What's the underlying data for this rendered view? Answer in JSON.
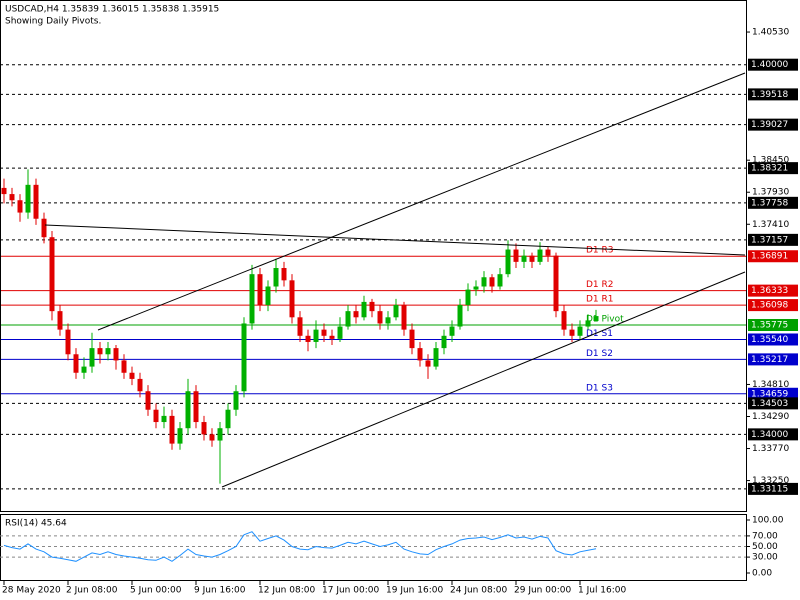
{
  "chart_data": {
    "type": "candlestick",
    "title": "USDCAD,H4  1.35839 1.36015 1.35838 1.35915",
    "subtitle": "Showing Daily Pivots.",
    "up_color": "#00b000",
    "down_color": "#e00000",
    "ylim": [
      1.3274,
      1.4105
    ],
    "xlim": [
      -0.5,
      92.75
    ],
    "xticks": [
      {
        "value": 0,
        "label": "28 May 2020"
      },
      {
        "value": 8,
        "label": "2 Jun 08:00"
      },
      {
        "value": 16,
        "label": "5 Jun 00:00"
      },
      {
        "value": 24,
        "label": "9 Jun 16:00"
      },
      {
        "value": 32,
        "label": "12 Jun 08:00"
      },
      {
        "value": 40,
        "label": "17 Jun 00:00"
      },
      {
        "value": 48,
        "label": "19 Jun 16:00"
      },
      {
        "value": 56,
        "label": "24 Jun 08:00"
      },
      {
        "value": 64,
        "label": "29 Jun 00:00"
      },
      {
        "value": 72,
        "label": "1 Jul 16:00"
      }
    ],
    "yticks": [
      {
        "value": 1.4053,
        "label": "1.40530"
      },
      {
        "value": 1.3845,
        "label": "1.38450"
      },
      {
        "value": 1.3793,
        "label": "1.37930"
      },
      {
        "value": 1.3741,
        "label": "1.37410"
      },
      {
        "value": 1.3481,
        "label": "1.34810"
      },
      {
        "value": 1.3429,
        "label": "1.34290"
      },
      {
        "value": 1.3377,
        "label": "1.33770"
      },
      {
        "value": 1.3325,
        "label": "1.33250"
      }
    ],
    "levels": [
      {
        "value": 1.4,
        "label": "1.40000",
        "color": "#000000",
        "style": "dotted"
      },
      {
        "value": 1.39518,
        "label": "1.39518",
        "color": "#000000",
        "style": "dotted"
      },
      {
        "value": 1.39027,
        "label": "1.39027",
        "color": "#000000",
        "style": "dotted"
      },
      {
        "value": 1.38321,
        "label": "1.38321",
        "color": "#000000",
        "style": "dotted"
      },
      {
        "value": 1.37758,
        "label": "1.37758",
        "color": "#000000",
        "style": "dotted"
      },
      {
        "value": 1.37157,
        "label": "1.37157",
        "color": "#000000",
        "style": "dotted"
      },
      {
        "value": 1.36891,
        "label": "1.36891",
        "color": "#e00000",
        "style": "solid",
        "name": "D1 R3"
      },
      {
        "value": 1.36333,
        "label": "1.36333",
        "color": "#e00000",
        "style": "solid",
        "name": "D1 R2"
      },
      {
        "value": 1.36098,
        "label": "1.36098",
        "color": "#e00000",
        "style": "solid",
        "name": "D1 R1"
      },
      {
        "value": 1.35775,
        "label": "1.35775",
        "color": "#00a000",
        "style": "solid",
        "name": "D1 Pivot"
      },
      {
        "value": 1.3554,
        "label": "1.35540",
        "color": "#0000cc",
        "style": "solid",
        "name": "D1 S1"
      },
      {
        "value": 1.35217,
        "label": "1.35217",
        "color": "#0000cc",
        "style": "solid",
        "name": "D1 S2"
      },
      {
        "value": 1.34659,
        "label": "1.34659",
        "color": "#0000cc",
        "style": "solid",
        "name": "D1 S3"
      },
      {
        "value": 1.34503,
        "label": "1.34503",
        "color": "#000000",
        "style": "dotted"
      },
      {
        "value": 1.34,
        "label": "1.34000",
        "color": "#000000",
        "style": "dotted"
      },
      {
        "value": 1.33115,
        "label": "1.33115",
        "color": "#000000",
        "style": "dotted"
      }
    ],
    "candles": [
      [
        1.38,
        1.3815,
        1.3775,
        1.379
      ],
      [
        1.379,
        1.38,
        1.377,
        1.378
      ],
      [
        1.378,
        1.379,
        1.3745,
        1.376
      ],
      [
        1.376,
        1.383,
        1.375,
        1.3805
      ],
      [
        1.3805,
        1.3815,
        1.374,
        1.375
      ],
      [
        1.375,
        1.376,
        1.371,
        1.372
      ],
      [
        1.372,
        1.373,
        1.3585,
        1.36
      ],
      [
        1.36,
        1.361,
        1.356,
        1.357
      ],
      [
        1.357,
        1.358,
        1.352,
        1.353
      ],
      [
        1.353,
        1.354,
        1.349,
        1.35
      ],
      [
        1.35,
        1.3525,
        1.349,
        1.351
      ],
      [
        1.351,
        1.3565,
        1.35,
        1.354
      ],
      [
        1.354,
        1.355,
        1.3515,
        1.353
      ],
      [
        1.353,
        1.355,
        1.352,
        1.354
      ],
      [
        1.354,
        1.3545,
        1.3505,
        1.352
      ],
      [
        1.352,
        1.353,
        1.349,
        1.35
      ],
      [
        1.35,
        1.351,
        1.348,
        1.349
      ],
      [
        1.349,
        1.35,
        1.346,
        1.347
      ],
      [
        1.347,
        1.348,
        1.343,
        1.344
      ],
      [
        1.344,
        1.345,
        1.341,
        1.342
      ],
      [
        1.342,
        1.3445,
        1.341,
        1.343
      ],
      [
        1.343,
        1.344,
        1.3375,
        1.3385
      ],
      [
        1.3385,
        1.342,
        1.3375,
        1.341
      ],
      [
        1.341,
        1.349,
        1.34,
        1.347
      ],
      [
        1.347,
        1.348,
        1.341,
        1.342
      ],
      [
        1.342,
        1.343,
        1.339,
        1.34
      ],
      [
        1.34,
        1.341,
        1.338,
        1.339
      ],
      [
        1.339,
        1.342,
        1.332,
        1.341
      ],
      [
        1.341,
        1.345,
        1.34,
        1.344
      ],
      [
        1.344,
        1.348,
        1.343,
        1.347
      ],
      [
        1.347,
        1.359,
        1.346,
        1.358
      ],
      [
        1.358,
        1.3675,
        1.357,
        1.366
      ],
      [
        1.366,
        1.367,
        1.36,
        1.361
      ],
      [
        1.361,
        1.365,
        1.36,
        1.364
      ],
      [
        1.364,
        1.3685,
        1.363,
        1.367
      ],
      [
        1.367,
        1.368,
        1.364,
        1.365
      ],
      [
        1.365,
        1.366,
        1.358,
        1.359
      ],
      [
        1.359,
        1.36,
        1.355,
        1.356
      ],
      [
        1.356,
        1.357,
        1.3535,
        1.355
      ],
      [
        1.355,
        1.3585,
        1.354,
        1.357
      ],
      [
        1.357,
        1.358,
        1.355,
        1.356
      ],
      [
        1.356,
        1.357,
        1.3545,
        1.3555
      ],
      [
        1.3555,
        1.359,
        1.355,
        1.3575
      ],
      [
        1.3575,
        1.361,
        1.357,
        1.36
      ],
      [
        1.36,
        1.361,
        1.358,
        1.359
      ],
      [
        1.359,
        1.3625,
        1.3585,
        1.3615
      ],
      [
        1.3615,
        1.362,
        1.359,
        1.36
      ],
      [
        1.36,
        1.361,
        1.357,
        1.358
      ],
      [
        1.358,
        1.36,
        1.357,
        1.359
      ],
      [
        1.359,
        1.362,
        1.3585,
        1.361
      ],
      [
        1.361,
        1.3615,
        1.356,
        1.357
      ],
      [
        1.357,
        1.358,
        1.353,
        1.354
      ],
      [
        1.354,
        1.355,
        1.351,
        1.352
      ],
      [
        1.352,
        1.353,
        1.349,
        1.351
      ],
      [
        1.351,
        1.355,
        1.3505,
        1.354
      ],
      [
        1.354,
        1.357,
        1.353,
        1.356
      ],
      [
        1.356,
        1.3585,
        1.355,
        1.3575
      ],
      [
        1.3575,
        1.362,
        1.357,
        1.361
      ],
      [
        1.361,
        1.3645,
        1.36,
        1.3635
      ],
      [
        1.3635,
        1.365,
        1.3625,
        1.364
      ],
      [
        1.364,
        1.3665,
        1.363,
        1.3655
      ],
      [
        1.3655,
        1.366,
        1.363,
        1.364
      ],
      [
        1.364,
        1.367,
        1.3635,
        1.366
      ],
      [
        1.366,
        1.3715,
        1.3655,
        1.37
      ],
      [
        1.37,
        1.371,
        1.367,
        1.368
      ],
      [
        1.368,
        1.37,
        1.367,
        1.369
      ],
      [
        1.369,
        1.3695,
        1.367,
        1.368
      ],
      [
        1.368,
        1.3712,
        1.3675,
        1.37
      ],
      [
        1.37,
        1.3705,
        1.368,
        1.369
      ],
      [
        1.369,
        1.3695,
        1.359,
        1.36
      ],
      [
        1.36,
        1.361,
        1.356,
        1.357
      ],
      [
        1.357,
        1.358,
        1.355,
        1.356
      ],
      [
        1.356,
        1.3585,
        1.3555,
        1.3575
      ],
      [
        1.3575,
        1.3595,
        1.357,
        1.3585
      ],
      [
        1.3584,
        1.3602,
        1.3584,
        1.3592
      ]
    ],
    "rsi": {
      "title": "RSI(14) 45.64",
      "color": "#1e90ff",
      "ylim": [
        0,
        100
      ],
      "yticks": [
        {
          "value": 100,
          "label": "100.00"
        },
        {
          "value": 70,
          "label": "70.00"
        },
        {
          "value": 50,
          "label": "50.00"
        },
        {
          "value": 30,
          "label": "30.00"
        },
        {
          "value": 0,
          "label": "0.00"
        }
      ],
      "levels": [
        70,
        50,
        30
      ],
      "values": [
        52,
        48,
        45,
        55,
        45,
        40,
        30,
        28,
        25,
        22,
        30,
        38,
        35,
        40,
        35,
        32,
        30,
        28,
        25,
        24,
        30,
        22,
        33,
        45,
        35,
        32,
        30,
        35,
        42,
        50,
        72,
        78,
        60,
        65,
        70,
        62,
        50,
        45,
        44,
        50,
        48,
        47,
        52,
        58,
        55,
        60,
        55,
        50,
        53,
        58,
        45,
        40,
        36,
        35,
        44,
        50,
        55,
        62,
        65,
        66,
        68,
        63,
        67,
        72,
        66,
        68,
        64,
        69,
        66,
        42,
        36,
        34,
        40,
        43,
        45.64
      ]
    }
  }
}
